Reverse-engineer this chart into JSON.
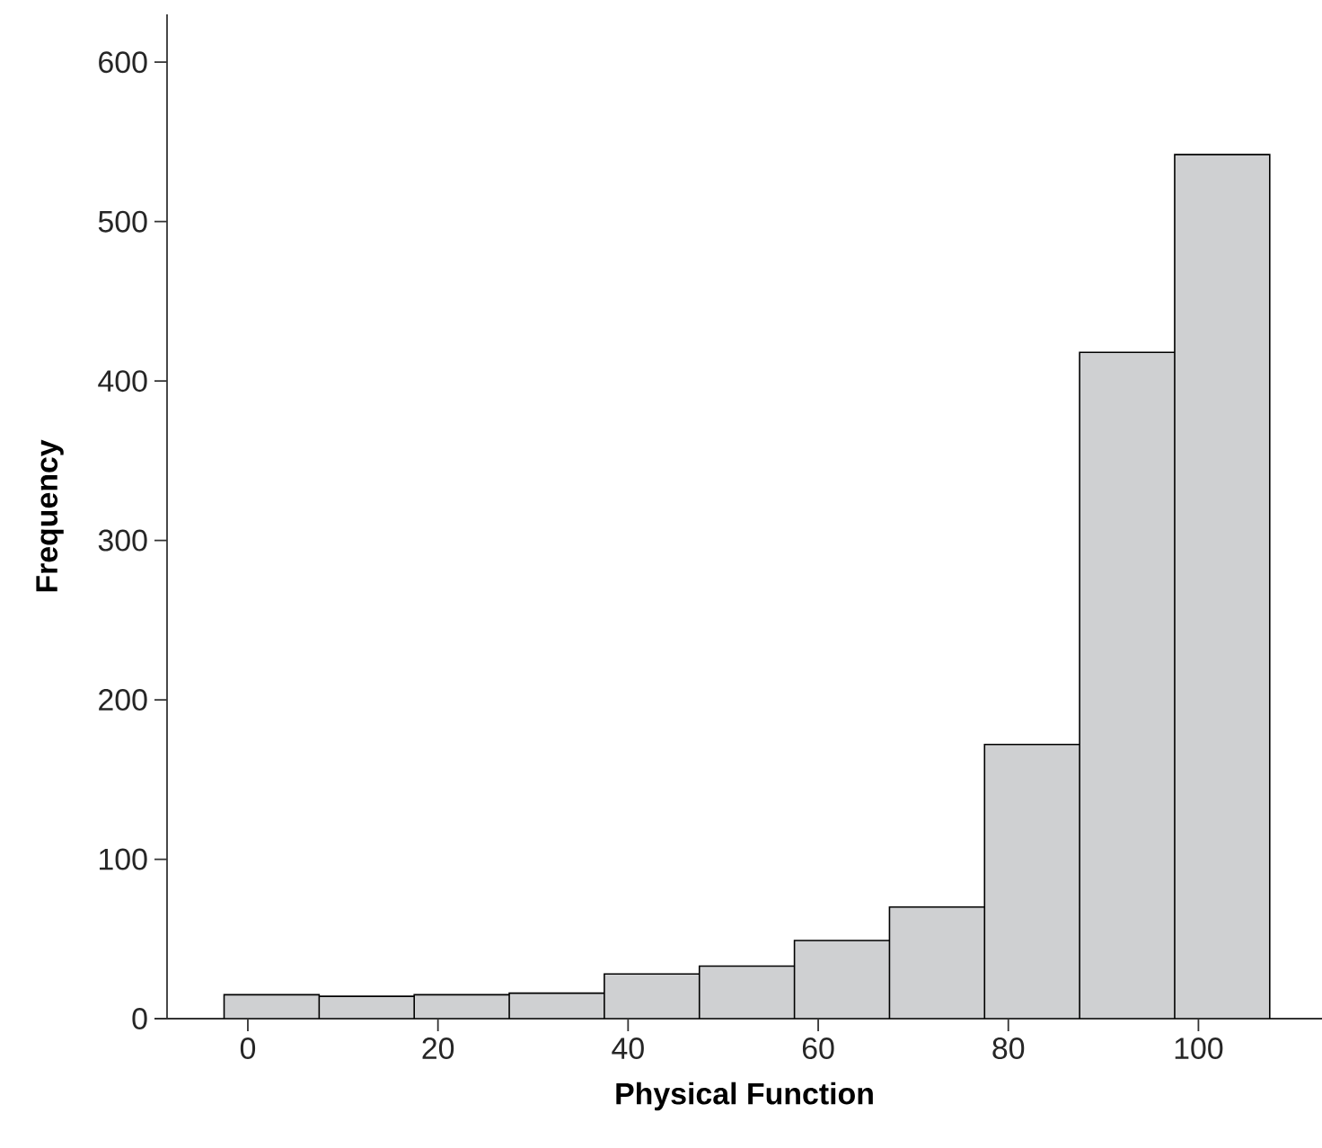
{
  "chart_data": {
    "type": "histogram",
    "xlabel": "Physical Function",
    "ylabel": "Frequency",
    "bins": [
      -2.5,
      7.5,
      17.5,
      27.5,
      37.5,
      47.5,
      57.5,
      67.5,
      77.5,
      87.5,
      97.5,
      107.5
    ],
    "values": [
      15,
      14,
      15,
      16,
      28,
      33,
      49,
      70,
      172,
      418,
      542
    ],
    "color": "#cfd0d2",
    "xlim": [
      -8.5,
      113
    ],
    "ylim": [
      0,
      630
    ],
    "xticks": [
      0,
      20,
      40,
      60,
      80,
      100
    ],
    "yticks": [
      0,
      100,
      200,
      300,
      400,
      500,
      600
    ],
    "grid": false
  }
}
